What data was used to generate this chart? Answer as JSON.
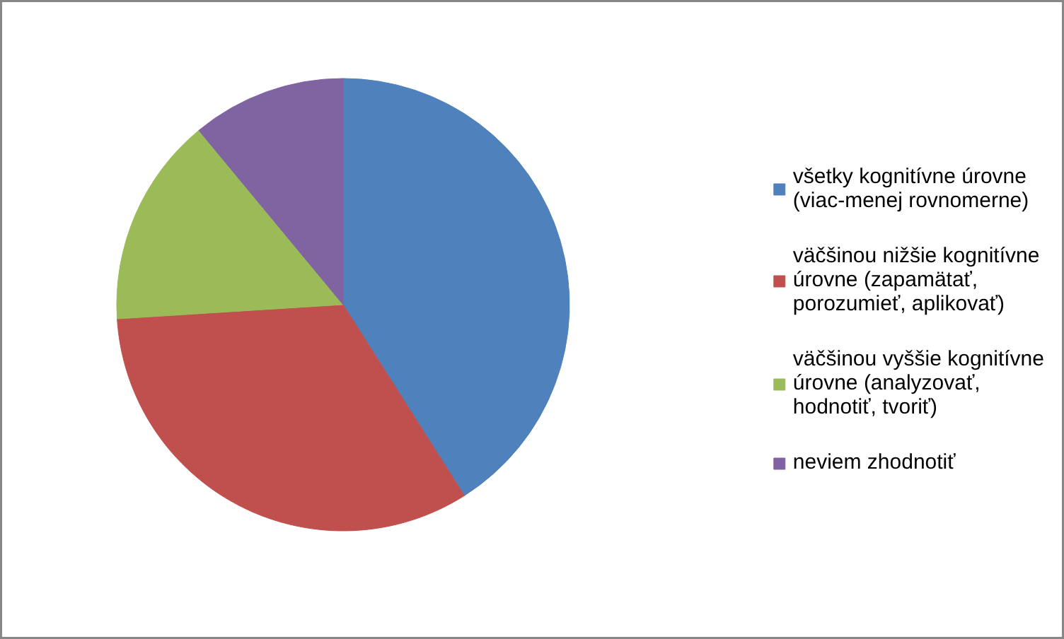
{
  "chart_data": {
    "type": "pie",
    "categories": [
      "všetky kognitívne úrovne (viac-menej rovnomerne)",
      "väčšinou nižšie kognitívne úrovne (zapamätať, porozumieť, aplikovať)",
      "väčšinou vyššie kognitívne úrovne (analyzovať, hodnotiť, tvoriť)",
      "neviem zhodnotiť"
    ],
    "values": [
      41,
      33,
      15,
      11
    ],
    "colors": [
      "#4f81bd",
      "#c0504d",
      "#9bbb59",
      "#8064a2"
    ],
    "legend": "right"
  }
}
